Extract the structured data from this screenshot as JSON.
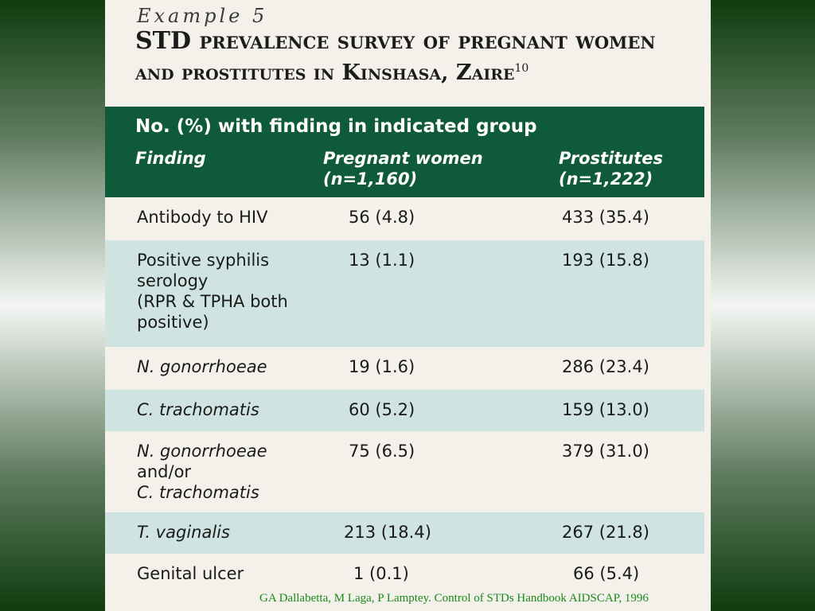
{
  "slide": {
    "example_label": "Example 5",
    "title_line1": "STD prevalence survey of pregnant women",
    "title_line2": "and prostitutes in Kinshasa, Zaire",
    "title_ref": "10",
    "citation": "GA Dallabetta, M Laga, P Lamptey. Control of STDs Handbook AIDSCAP, 1996"
  },
  "table": {
    "group_header": "No. (%) with finding in indicated group",
    "col_finding": "Finding",
    "col_pregnant": "Pregnant women",
    "col_pregnant_n": "(n=1,160)",
    "col_prostitutes": "Prostitutes",
    "col_prostitutes_n": "(n=1,222)",
    "rows": [
      {
        "finding": [
          "Antibody to HIV"
        ],
        "pregnant": "56 (4.8)",
        "prostitutes": "433 (35.4)"
      },
      {
        "finding": [
          "Positive syphilis",
          "serology",
          "(RPR & TPHA both",
          "positive)"
        ],
        "pregnant": "13 (1.1)",
        "prostitutes": "193 (15.8)"
      },
      {
        "finding": [
          "N. gonorrhoeae"
        ],
        "pregnant": "19 (1.6)",
        "prostitutes": "286 (23.4)"
      },
      {
        "finding": [
          "C. trachomatis"
        ],
        "pregnant": "60 (5.2)",
        "prostitutes": "159 (13.0)"
      },
      {
        "finding": [
          "N. gonorrhoeae",
          "and/or",
          "C. trachomatis"
        ],
        "pregnant": "75 (6.5)",
        "prostitutes": "379 (31.0)"
      },
      {
        "finding": [
          "T. vaginalis"
        ],
        "pregnant": "213 (18.4)",
        "prostitutes": "267 (21.8)"
      },
      {
        "finding": [
          "Genital ulcer"
        ],
        "pregnant": "1 (0.1)",
        "prostitutes": "66 (5.4)"
      }
    ]
  }
}
